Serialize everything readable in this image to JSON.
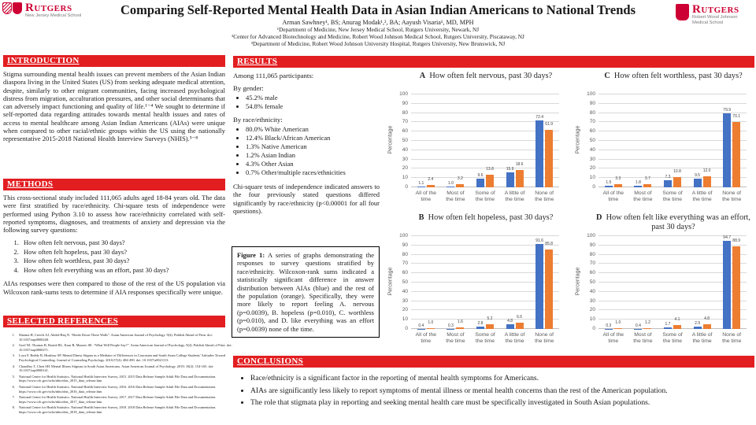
{
  "header": {
    "title": "Comparing Self-Reported Mental Health Data in Asian Indian Americans to National Trends",
    "authors": "Arman Sawhney¹, BS; Anurag Modak¹,², BA; Aayush Visaria¹, MD, MPH",
    "affiliations": [
      "¹Department of Medicine, New Jersey Medical School, Rutgers University, Newark, NJ",
      "²Center for Advanced Biotechnology and Medicine, Robert Wood Johnson Medical School, Rutgers University, Piscataway, NJ",
      "³Department of Medicine, Robert Wood Johnson University Hospital, Rutgers University, New Brunswick, NJ"
    ],
    "logo_left": {
      "brand": "Rutgers",
      "sub": "New Jersey Medical School"
    },
    "logo_right": {
      "brand": "Rutgers",
      "sub": "Robert Wood Johnson Medical School"
    }
  },
  "introduction": {
    "heading": "INTRODUCTION",
    "body": "Stigma surrounding mental health issues can prevent members of the Asian Indian diaspora living in the United States (US) from seeking adequate medical attention, despite, similarly to other migrant communities, facing increased psychological distress from migration, acculturation pressures, and other social determinants that can adversely impact functioning and quality of life.¹⁻⁴ We sought to determine if self-reported data regarding attitudes towards mental health issues and rates of access to mental healthcare among Asian Indian Americans (AIAs) were unique when compared to other racial/ethnic groups within the US using the nationally representative 2015-2018 National Health Interview Surveys (NHIS).⁵⁻⁸"
  },
  "methods": {
    "heading": "METHODS",
    "intro": "This cross-sectional study included 111,065 adults aged 18-84 years old. The data were first stratified by race/ethnicity. Chi-square tests of independence were performed using Python 3.10 to assess how race/ethnicity correlated with self-reported symptoms, diagnoses, and treatments of anxiety and depression via the following survey questions:",
    "questions": [
      "How often felt nervous, past 30 days?",
      "How often felt hopeless, past 30 days?",
      "How often felt worthless, past 30 days?",
      "How often felt everything was an effort, past 30 days?"
    ],
    "outro": "AIAs responses were then compared to those of the rest of the US population via Wilcoxon rank-sums tests to determine if AIA responses specifically were unique."
  },
  "references": {
    "heading": "SELECTED REFERENCES",
    "items": [
      "Sharma H, Creech AJ, Abdul-Haq N. “Break Down These Walls”. Asian American Journal of Psychology. 9(4). Publish Ahead of Print. doi: 10.1037/aap0000248.",
      "Goel NJ, Thomas B, Boutté RL, Kaur B, Mazzeo SE. “What Will People Say?”. Asian American Journal of Psychology. 9(4). Publish Ahead of Print. doi: 10.1037/aap0000271.",
      "Loya F, Reddy R, Hinshaw SP. Mental Illness Stigma as a Mediator of Differences in Caucasian and South Asian College Students’ Attitudes Toward Psychological Counseling. Journal of Counseling Psychology. 2010;57(4): 484-490. doi: 10.1037/a0021113.",
      "Chaudhry T, Chen SH. Mental Illness Stigmas in South Asian Americans. Asian American Journal of Psychology. 2019; 10(2): 154-165. doi: 10.1037/aap0000141.",
      "National Center for Health Statistics. National Health Interview Survey, 2015. 2015 Data Release Sample Adult File Data and Documentation. https://www.cdc.gov/nchs/nhis/nhis_2015_data_release.htm",
      "National Center for Health Statistics. National Health Interview Survey, 2016. 2016 Data Release Sample Adult File Data and Documentation. https://www.cdc.gov/nchs/nhis/nhis_2016_data_release.htm",
      "National Center for Health Statistics. National Health Interview Survey, 2017. 2017 Data Release Sample Adult File Data and Documentation. https://www.cdc.gov/nchs/nhis/nhis_2017_data_release.htm",
      "National Center for Health Statistics. National Health Interview Survey, 2018. 2018 Data Release Sample Adult File Data and Documentation. https://www.cdc.gov/nchs/nhis/nhis_2018_data_release.htm"
    ]
  },
  "results": {
    "heading": "RESULTS",
    "participants": "Among 111,065 participants:",
    "by_gender_label": "By gender:",
    "gender": [
      "45.2% male",
      "54.8% female"
    ],
    "by_race_label": "By race/ethnicity:",
    "race": [
      "80.0% White American",
      "12.4% Black/African American",
      "1.3% Native American",
      "1.2% Asian Indian",
      "4.3% Other Asian",
      "0.7% Other/multiple races/ethnicities"
    ],
    "chi_square": "Chi-square tests of independence indicated answers to the four previously stated questions differed significantly by race/ethnicity (p<0.00001 for all four questions)."
  },
  "figure1": {
    "label": "Figure 1:",
    "text": " A series of graphs demonstrating the responses to survey questions stratified by race/ethnicity. Wilcoxon-rank sums indicated a statistically significant difference in answer distribution between AIAs (blue) and the rest of the population (orange). Specifically, they were more likely to report feeling A. nervous (p=0.0039), B. hopeless (p=0.010), C. worthless (p=0.010), and D. like everything was an effort (p=0.0039) none of the time."
  },
  "conclusions": {
    "heading": "CONCLUSIONS",
    "bullets": [
      "Race/ethnicity is a significant factor in the reporting of mental health symptoms for Americans.",
      "AIAs are significantly less likely to report symptoms of mental illness or mental health concerns than the rest of the American population.",
      "The role that stigmata play in reporting and seeking mental health care must be specifically investigated in South Asian populations."
    ]
  },
  "colors": {
    "rutgers_crimson": "#CC0033",
    "banner_red": "#E21E21",
    "bar_blue": "#4472C4",
    "bar_orange": "#ED7D31",
    "gridline": "#D9D9D9",
    "axis_text": "#595959"
  },
  "chart_data": [
    {
      "type": "bar",
      "letter": "A",
      "grid_position": "top-left",
      "title": "How often felt nervous, past 30 days?",
      "categories": [
        "All of the time",
        "Most of the time",
        "Some of the time",
        "A little of the time",
        "None of the time"
      ],
      "series": [
        {
          "name": "Asian Indian Americans (blue)",
          "color": "#4472C4",
          "values": [
            1.1,
            1.0,
            9.6,
            15.9,
            72.4
          ]
        },
        {
          "name": "Rest of population (orange)",
          "color": "#ED7D31",
          "values": [
            2.4,
            3.2,
            13.8,
            18.6,
            61.9
          ]
        }
      ],
      "xlabel": "",
      "ylabel": "Percentage",
      "ylim": [
        0,
        100
      ],
      "ytick_step": 10,
      "grid": true,
      "legend": "none",
      "data_labels": true
    },
    {
      "type": "bar",
      "letter": "C",
      "grid_position": "top-right",
      "title": "How often felt worthless, past 30 days?",
      "categories": [
        "All of the time",
        "Most of the time",
        "Some of the time",
        "A little of the time",
        "None of the time"
      ],
      "series": [
        {
          "name": "Asian Indian Americans (blue)",
          "color": "#4472C4",
          "values": [
            1.5,
            1.8,
            7.3,
            9.5,
            79.9
          ]
        },
        {
          "name": "Rest of population (orange)",
          "color": "#ED7D31",
          "values": [
            3.3,
            3.7,
            10.8,
            12.0,
            70.1
          ]
        }
      ],
      "xlabel": "",
      "ylabel": "Percentage",
      "ylim": [
        0,
        100
      ],
      "ytick_step": 10,
      "grid": true,
      "legend": "none",
      "data_labels": true
    },
    {
      "type": "bar",
      "letter": "B",
      "grid_position": "bottom-left",
      "title": "How often felt hopeless, past 30 days?",
      "categories": [
        "All of the time",
        "Most of the time",
        "Some of the time",
        "A little of the time",
        "None of the time"
      ],
      "series": [
        {
          "name": "Asian Indian Americans (blue)",
          "color": "#4472C4",
          "values": [
            0.4,
            0.3,
            2.8,
            4.8,
            91.6
          ]
        },
        {
          "name": "Rest of population (orange)",
          "color": "#ED7D31",
          "values": [
            1.0,
            1.6,
            5.2,
            6.6,
            85.8
          ]
        }
      ],
      "xlabel": "",
      "ylabel": "Percentage",
      "ylim": [
        0,
        100
      ],
      "ytick_step": 10,
      "grid": true,
      "legend": "none",
      "data_labels": true
    },
    {
      "type": "bar",
      "letter": "D",
      "grid_position": "bottom-right",
      "title": "How often felt like everything was an effort, past 30 days?",
      "categories": [
        "All of the time",
        "Most of the time",
        "Some of the time",
        "A little of the time",
        "None of the time"
      ],
      "series": [
        {
          "name": "Asian Indian Americans (blue)",
          "color": "#4472C4",
          "values": [
            0.3,
            0.4,
            1.7,
            2.9,
            94.7
          ]
        },
        {
          "name": "Rest of population (orange)",
          "color": "#ED7D31",
          "values": [
            1.0,
            1.2,
            4.1,
            4.8,
            88.9
          ]
        }
      ],
      "xlabel": "",
      "ylabel": "Percentage",
      "ylim": [
        0,
        100
      ],
      "ytick_step": 10,
      "grid": true,
      "legend": "none",
      "data_labels": true
    }
  ]
}
